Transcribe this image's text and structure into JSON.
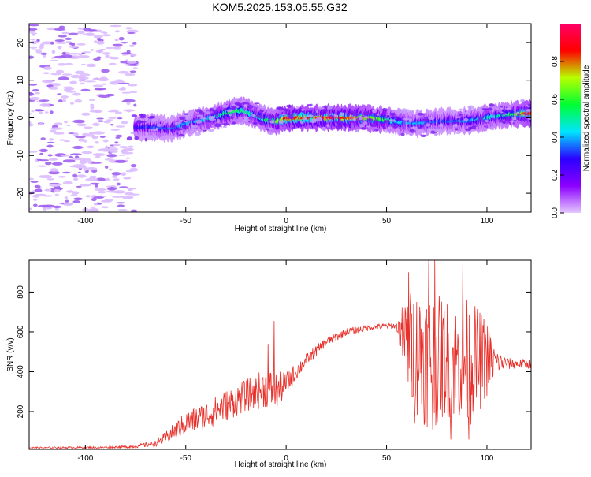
{
  "figure": {
    "title": "KOM5.2025.153.05.55.G32"
  },
  "chart_data": [
    {
      "type": "heatmap",
      "title": "KOM5.2025.153.05.55.G32",
      "xlabel": "Height of straight line (km)",
      "ylabel": "Frequency (Hz)",
      "xlim": [
        -128,
        122
      ],
      "ylim": [
        -25,
        25
      ],
      "x_ticks": [
        -100,
        -50,
        0,
        50,
        100
      ],
      "y_ticks": [
        -20,
        -10,
        0,
        10,
        20
      ],
      "x_tick_labels": [
        "-100",
        "-50",
        "0",
        "50",
        "100"
      ],
      "y_tick_labels": [
        "-20",
        "-10",
        "0",
        "10",
        "20"
      ],
      "grid": false,
      "colorbar": {
        "label": "Normalized spectral amplitude",
        "range": [
          0,
          1
        ],
        "ticks": [
          0.0,
          0.2,
          0.4,
          0.6,
          0.8
        ],
        "tick_labels": [
          "0.0",
          "0.2",
          "0.4",
          "0.6",
          "0.8"
        ],
        "colormap": "rainbow",
        "stops": [
          "#e6c8ff",
          "#8c00ff",
          "#2b00ff",
          "#00e5ff",
          "#00ff33",
          "#b8ff00",
          "#ff0000",
          "#ff0066"
        ]
      },
      "ridge": {
        "description_points": "center frequency of the dominant Doppler trace vs height",
        "x": [
          -75,
          -65,
          -58,
          -52,
          -46,
          -40,
          -34,
          -28,
          -22,
          -16,
          -10,
          -5,
          0,
          5,
          10,
          20,
          30,
          40,
          50,
          55,
          60,
          65,
          70,
          75,
          80,
          85,
          90,
          95,
          100,
          105,
          110,
          115,
          122
        ],
        "freq": [
          -2.5,
          -2.5,
          -3,
          -2,
          -1,
          -0.5,
          0.5,
          1.5,
          2,
          0.8,
          -0.5,
          -1,
          -0.2,
          0,
          0,
          0,
          0,
          0,
          -0.5,
          -1,
          -1.3,
          -1.5,
          -1.2,
          -1,
          -0.8,
          -1,
          -0.8,
          -0.5,
          0,
          0.5,
          0.8,
          1,
          1.2
        ],
        "peak_amplitude": [
          0.3,
          0.35,
          0.35,
          0.4,
          0.4,
          0.45,
          0.5,
          0.6,
          0.55,
          0.5,
          0.55,
          0.65,
          0.9,
          0.9,
          0.85,
          0.9,
          0.85,
          0.75,
          0.6,
          0.45,
          0.4,
          0.4,
          0.4,
          0.35,
          0.35,
          0.35,
          0.4,
          0.45,
          0.5,
          0.5,
          0.55,
          0.65,
          0.95
        ]
      },
      "noise_region": {
        "x_range": [
          -128,
          -75
        ],
        "freq_range": [
          -25,
          25
        ],
        "amplitude": "low (≈0.0–0.1)"
      }
    },
    {
      "type": "line",
      "xlabel": "Height of straight line (km)",
      "ylabel": "SNR (v/v)",
      "xlim": [
        -128,
        122
      ],
      "ylim": [
        10,
        960
      ],
      "x_ticks": [
        -100,
        -50,
        0,
        50,
        100
      ],
      "y_ticks": [
        200,
        400,
        600,
        800
      ],
      "x_tick_labels": [
        "-100",
        "-50",
        "0",
        "50",
        "100"
      ],
      "y_tick_labels": [
        "200",
        "400",
        "600",
        "800"
      ],
      "grid": false,
      "series": [
        {
          "color": "#e8302a",
          "envelope_x": [
            -128,
            -90,
            -75,
            -65,
            -60,
            -50,
            -40,
            -30,
            -20,
            -10,
            -5,
            0,
            10,
            20,
            30,
            40,
            50,
            55,
            60,
            65,
            70,
            75,
            80,
            85,
            90,
            95,
            100,
            105,
            110,
            115,
            122
          ],
          "envelope_mean": [
            18,
            20,
            25,
            40,
            70,
            140,
            180,
            230,
            280,
            320,
            300,
            340,
            460,
            550,
            600,
            620,
            630,
            630,
            550,
            500,
            480,
            460,
            470,
            450,
            440,
            450,
            470,
            450,
            440,
            440,
            440
          ],
          "envelope_spread": [
            4,
            5,
            8,
            15,
            30,
            60,
            70,
            80,
            80,
            100,
            100,
            60,
            30,
            25,
            20,
            15,
            15,
            15,
            250,
            330,
            360,
            330,
            300,
            300,
            330,
            280,
            200,
            60,
            30,
            25,
            25
          ],
          "extremes": [
            {
              "x": -6,
              "y": 655
            },
            {
              "x": -9,
              "y": 540
            },
            {
              "x": 61,
              "y": 900
            },
            {
              "x": 64,
              "y": 940
            },
            {
              "x": 71,
              "y": 960
            },
            {
              "x": 74,
              "y": 960
            },
            {
              "x": 88,
              "y": 960
            },
            {
              "x": 64,
              "y": 140
            },
            {
              "x": 73,
              "y": 110
            },
            {
              "x": 82,
              "y": 60
            },
            {
              "x": 91,
              "y": 60
            }
          ]
        }
      ]
    }
  ]
}
